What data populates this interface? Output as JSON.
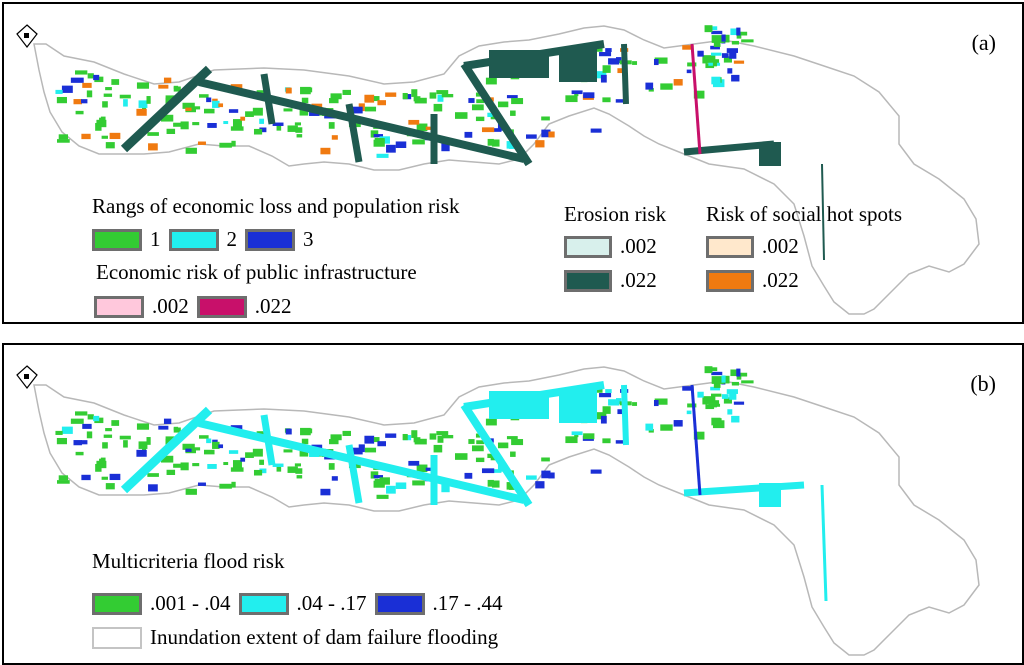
{
  "panel_a": {
    "label": "(a)",
    "economic_legend": {
      "title": "Rangs of economic loss and population risk",
      "items": [
        {
          "label": "1",
          "color": "#33cc33"
        },
        {
          "label": "2",
          "color": "#22eeee"
        },
        {
          "label": "3",
          "color": "#1a2fd6"
        }
      ]
    },
    "infrastructure_legend": {
      "title": "Economic risk of public infrastructure",
      "items": [
        {
          "label": ".002",
          "color": "#ffc8dc"
        },
        {
          "label": ".022",
          "color": "#c8106a"
        }
      ]
    },
    "erosion_legend": {
      "title": "Erosion risk",
      "items": [
        {
          "label": ".002",
          "color": "#d8f0ec"
        },
        {
          "label": ".022",
          "color": "#1f5a50"
        }
      ]
    },
    "social_legend": {
      "title": "Risk of social hot spots",
      "items": [
        {
          "label": ".002",
          "color": "#ffe8cc"
        },
        {
          "label": ".022",
          "color": "#f07a10"
        }
      ]
    }
  },
  "panel_b": {
    "label": "(b)",
    "flood_legend": {
      "title": "Multicriteria flood risk",
      "items": [
        {
          "label": ".001 - .04",
          "color": "#33cc33"
        },
        {
          "label": ".04 - .17",
          "color": "#22eeee"
        },
        {
          "label": ".17 - .44",
          "color": "#1a2fd6"
        }
      ]
    },
    "extent_legend": {
      "label": "Inundation extent of dam failure flooding",
      "color": "#ffffff"
    }
  },
  "map_colors": {
    "outline": "#b8b8b8",
    "green": "#33cc33",
    "cyan": "#22eeee",
    "blue": "#1a2fd6",
    "dark": "#1f5a50",
    "magenta": "#c8106a",
    "orange": "#f07a10"
  }
}
